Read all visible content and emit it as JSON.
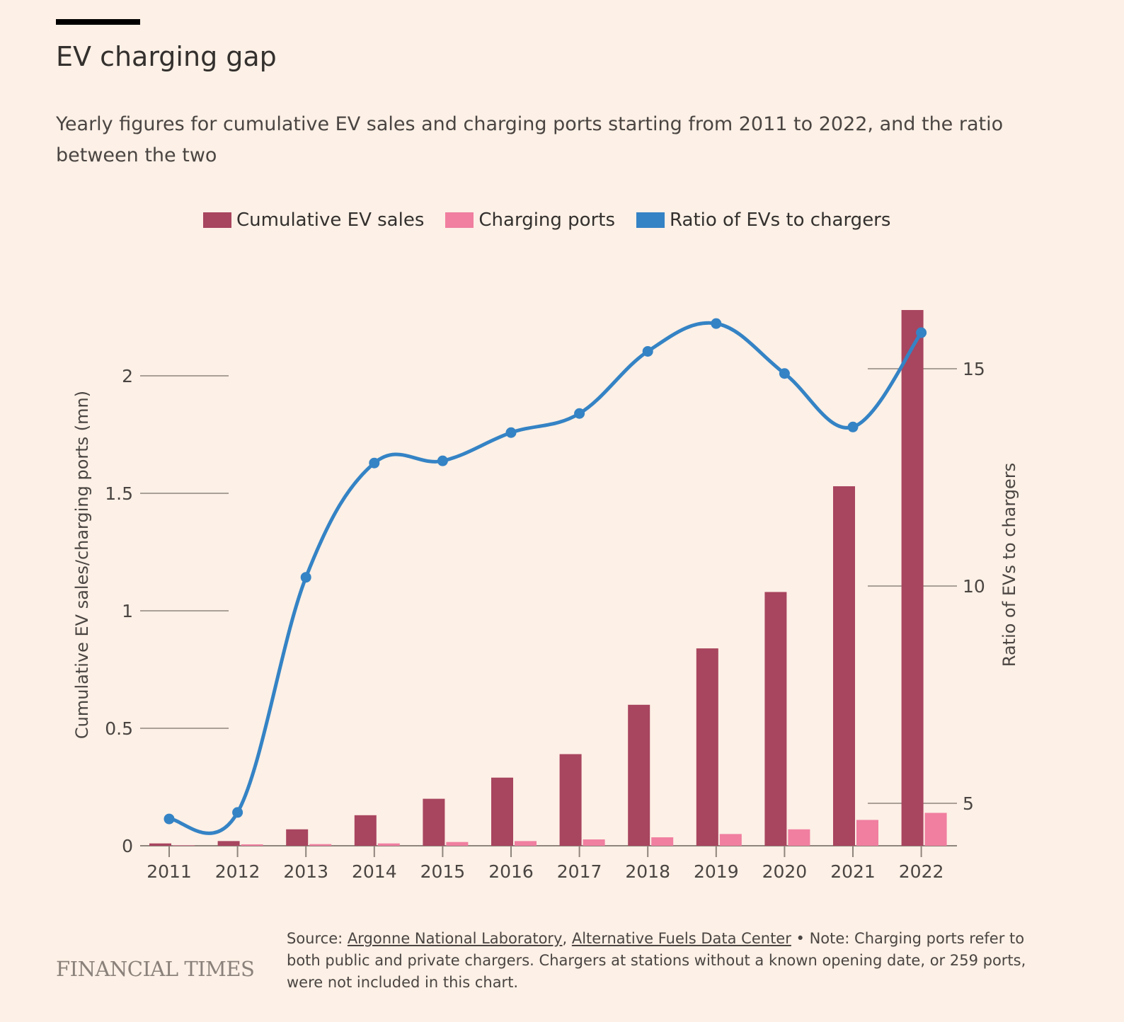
{
  "header": {
    "title": "EV charging gap",
    "subtitle": "Yearly figures for cumulative EV sales and charging ports starting from 2011 to 2022, and the ratio between the two"
  },
  "legend": [
    {
      "label": "Cumulative EV sales",
      "color": "#A8455F"
    },
    {
      "label": "Charging ports",
      "color": "#F07FA0"
    },
    {
      "label": "Ratio of EVs to chargers",
      "color": "#3483C5"
    }
  ],
  "chart_data": {
    "type": "bar",
    "title": "EV charging gap",
    "categories": [
      "2011",
      "2012",
      "2013",
      "2014",
      "2015",
      "2016",
      "2017",
      "2018",
      "2019",
      "2020",
      "2021",
      "2022"
    ],
    "series": [
      {
        "name": "Cumulative EV sales",
        "type": "bar",
        "axis": "left",
        "color": "#A8455F",
        "values": [
          0.01,
          0.02,
          0.07,
          0.13,
          0.2,
          0.29,
          0.39,
          0.6,
          0.84,
          1.08,
          1.53,
          2.28
        ]
      },
      {
        "name": "Charging ports",
        "type": "bar",
        "axis": "left",
        "color": "#F07FA0",
        "values": [
          0.002,
          0.006,
          0.007,
          0.01,
          0.016,
          0.02,
          0.027,
          0.036,
          0.05,
          0.07,
          0.11,
          0.14
        ]
      },
      {
        "name": "Ratio of EVs to chargers",
        "type": "line",
        "axis": "right",
        "color": "#3483C5",
        "values": [
          4.64,
          4.79,
          10.2,
          12.83,
          12.88,
          13.53,
          13.97,
          15.4,
          16.04,
          14.89,
          13.66,
          15.83
        ]
      }
    ],
    "left_axis": {
      "label": "Cumulative EV sales/charging ports (mn)",
      "ticks": [
        0,
        0.5,
        1,
        1.5,
        2
      ],
      "tick_labels": [
        "0",
        "0.5",
        "1",
        "1.5",
        "2"
      ],
      "range": [
        0,
        2.28
      ]
    },
    "right_axis": {
      "label": "Ratio of EVs to chargers",
      "ticks": [
        5,
        10,
        15
      ],
      "tick_labels": [
        "5",
        "10",
        "15"
      ],
      "range": [
        4,
        16.5
      ]
    },
    "xlabel": "",
    "legend_position": "top",
    "grid": false
  },
  "footer": {
    "logo": "FINANCIAL TIMES",
    "source_prefix": "Source: ",
    "source_links": [
      "Argonne National Laboratory",
      "Alternative Fuels Data Center"
    ],
    "source_sep": ", ",
    "note": " • Note: Charging ports refer to both public and private chargers. Chargers at stations without a known opening date, or 259 ports, were not included in this chart."
  }
}
